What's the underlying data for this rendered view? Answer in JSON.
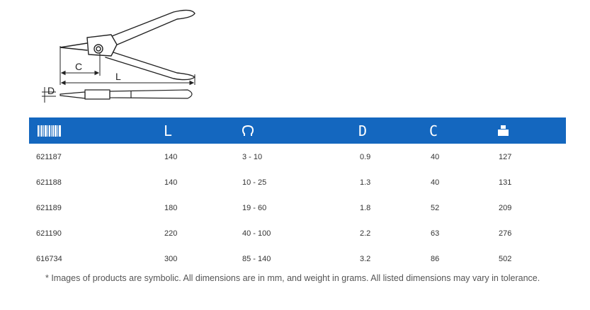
{
  "diagram": {
    "label_c": "C",
    "label_l": "L",
    "label_d": "D"
  },
  "header": {
    "col_l": "L",
    "col_d": "D",
    "col_c": "C",
    "icons": [
      "barcode-icon",
      "omega-icon",
      "weight-icon"
    ]
  },
  "rows": [
    {
      "code": "621187",
      "l": "140",
      "range": "3 - 10",
      "d": "0.9",
      "c": "40",
      "weight": "127"
    },
    {
      "code": "621188",
      "l": "140",
      "range": "10 - 25",
      "d": "1.3",
      "c": "40",
      "weight": "131"
    },
    {
      "code": "621189",
      "l": "180",
      "range": "19 - 60",
      "d": "1.8",
      "c": "52",
      "weight": "209"
    },
    {
      "code": "621190",
      "l": "220",
      "range": "40 - 100",
      "d": "2.2",
      "c": "63",
      "weight": "276"
    },
    {
      "code": "616734",
      "l": "300",
      "range": "85 - 140",
      "d": "3.2",
      "c": "86",
      "weight": "502"
    }
  ],
  "footnote": "* Images of products are symbolic. All dimensions are in mm, and weight in grams. All listed dimensions may vary in tolerance.",
  "colors": {
    "header_bg": "#1467bf",
    "text": "#333333"
  }
}
